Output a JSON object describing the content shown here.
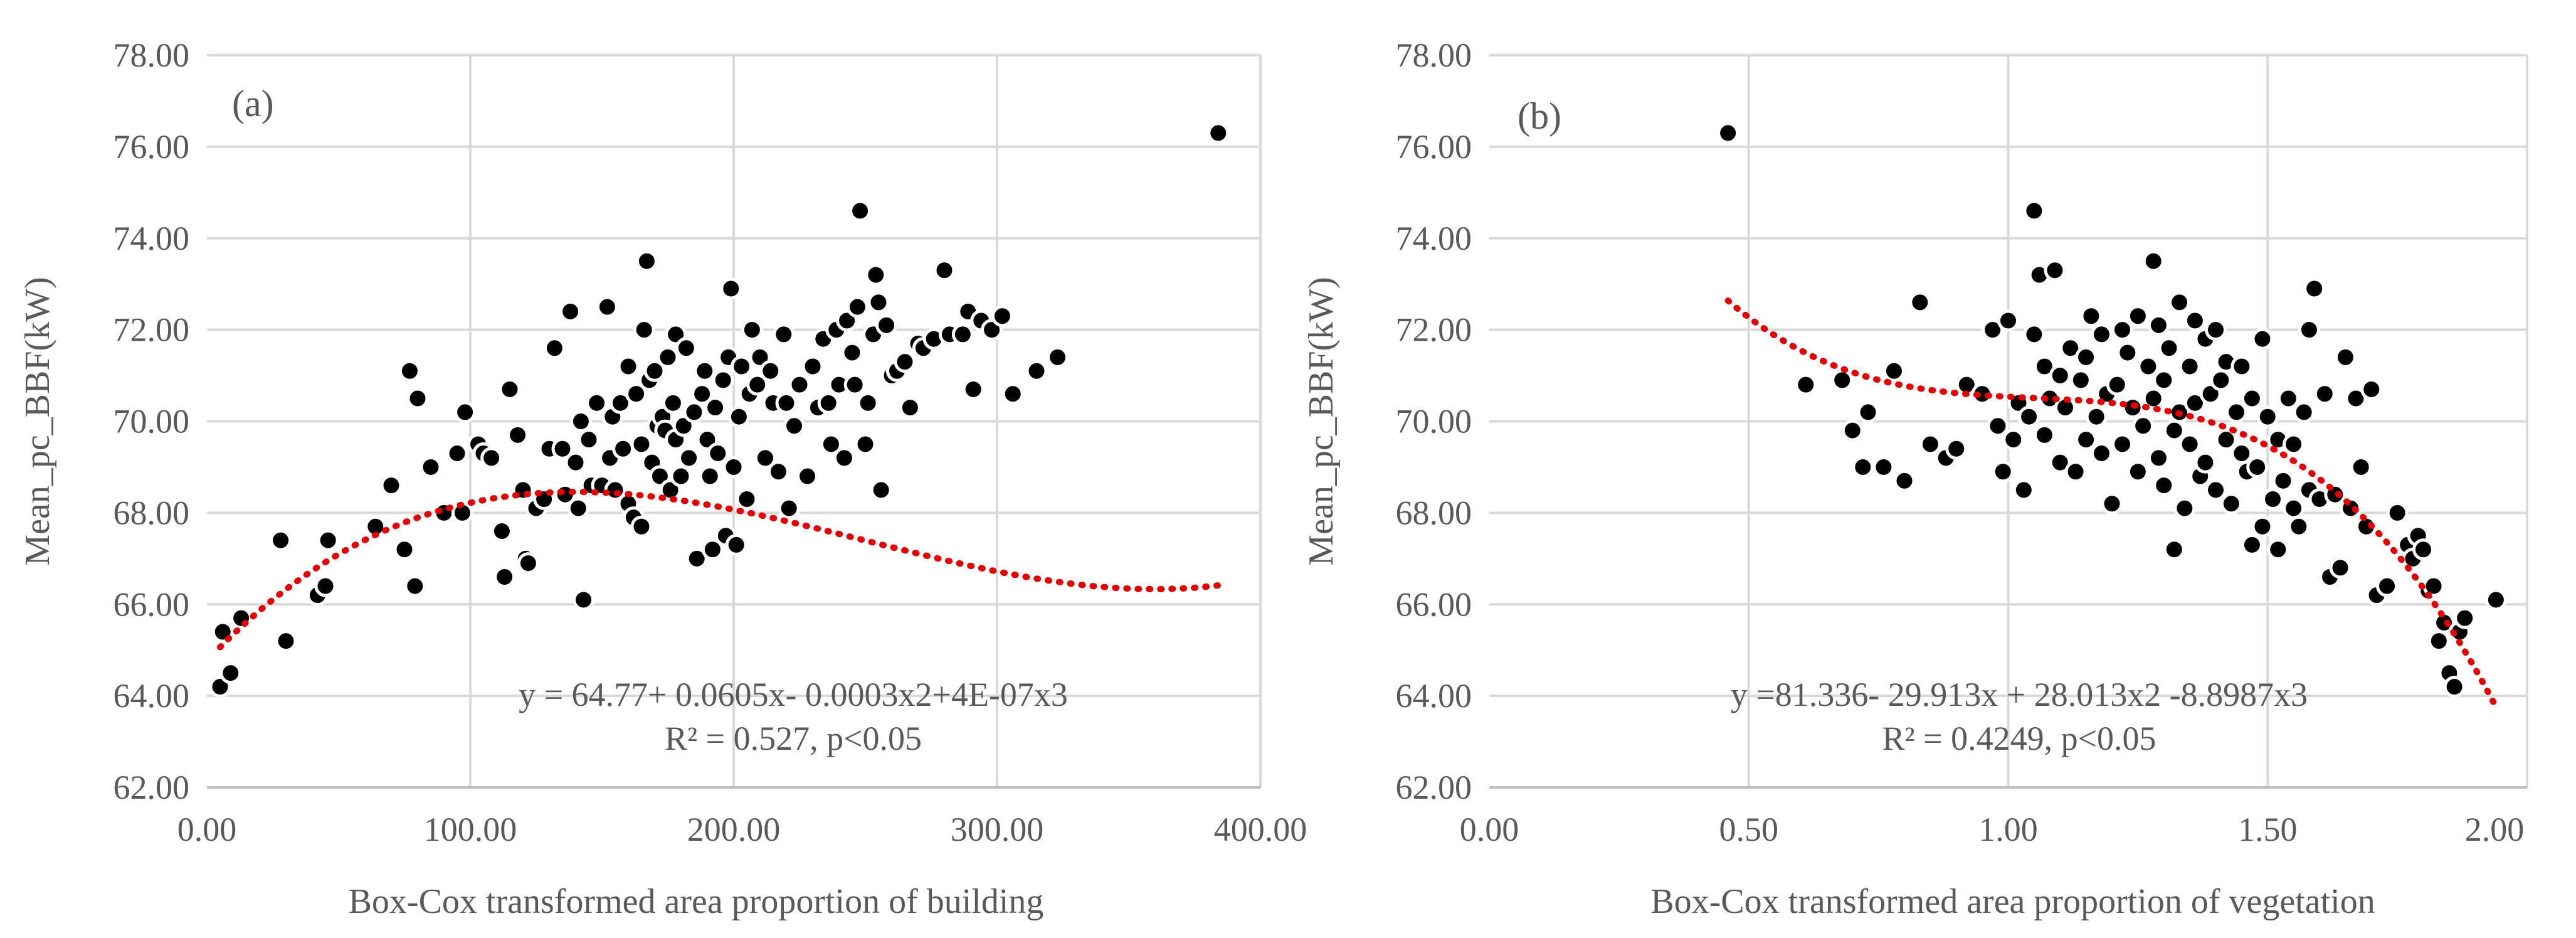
{
  "chart_data": [
    {
      "type": "scatter",
      "panel_label": "(a)",
      "xlabel": "Box-Cox transformed area proportion of building",
      "ylabel": "Mean_pc_BBF(kW)",
      "xlim": [
        0,
        400
      ],
      "ylim": [
        62,
        78
      ],
      "x_tick_values": [
        0,
        100,
        200,
        300,
        400
      ],
      "x_tick_labels": [
        "0.00",
        "100.00",
        "200.00",
        "300.00",
        "400.00"
      ],
      "y_tick_values": [
        62,
        64,
        66,
        68,
        70,
        72,
        74,
        76,
        78
      ],
      "y_tick_labels": [
        "62.00",
        "64.00",
        "66.00",
        "68.00",
        "70.00",
        "72.00",
        "74.00",
        "76.00",
        "78.00"
      ],
      "grid": true,
      "trendline": {
        "type": "polynomial-3",
        "coefficients": [
          64.77,
          0.0605,
          -0.0003,
          4e-07
        ]
      },
      "equation_text": "y = 64.77+ 0.0605x- 0.0003x2+4E-07x3",
      "r2_text": "R² = 0.527, p<0.05",
      "points": [
        [
          5,
          64.2
        ],
        [
          9,
          64.5
        ],
        [
          6,
          65.4
        ],
        [
          13,
          65.7
        ],
        [
          30,
          65.2
        ],
        [
          28,
          67.4
        ],
        [
          42,
          66.2
        ],
        [
          45,
          66.4
        ],
        [
          46,
          67.4
        ],
        [
          64,
          67.7
        ],
        [
          70,
          68.6
        ],
        [
          75,
          67.2
        ],
        [
          79,
          66.4
        ],
        [
          77,
          71.1
        ],
        [
          80,
          70.5
        ],
        [
          85,
          69.0
        ],
        [
          90,
          68.0
        ],
        [
          95,
          69.3
        ],
        [
          97,
          68.0
        ],
        [
          98,
          70.2
        ],
        [
          103,
          69.5
        ],
        [
          105,
          69.3
        ],
        [
          108,
          69.2
        ],
        [
          112,
          67.6
        ],
        [
          113,
          66.6
        ],
        [
          115,
          70.7
        ],
        [
          118,
          69.7
        ],
        [
          121,
          67.0
        ],
        [
          122,
          66.9
        ],
        [
          120,
          68.5
        ],
        [
          125,
          68.1
        ],
        [
          128,
          68.3
        ],
        [
          130,
          69.4
        ],
        [
          132,
          71.6
        ],
        [
          135,
          69.4
        ],
        [
          136,
          68.4
        ],
        [
          138,
          72.4
        ],
        [
          140,
          69.1
        ],
        [
          141,
          68.1
        ],
        [
          142,
          70.0
        ],
        [
          143,
          66.1
        ],
        [
          145,
          69.6
        ],
        [
          146,
          68.6
        ],
        [
          148,
          70.4
        ],
        [
          150,
          68.6
        ],
        [
          152,
          72.5
        ],
        [
          153,
          69.2
        ],
        [
          154,
          70.1
        ],
        [
          155,
          68.5
        ],
        [
          157,
          70.4
        ],
        [
          158,
          69.4
        ],
        [
          160,
          71.2
        ],
        [
          160,
          68.2
        ],
        [
          162,
          67.9
        ],
        [
          163,
          70.6
        ],
        [
          165,
          69.5
        ],
        [
          165,
          67.7
        ],
        [
          166,
          72.0
        ],
        [
          167,
          73.5
        ],
        [
          168,
          70.9
        ],
        [
          169,
          69.1
        ],
        [
          170,
          71.1
        ],
        [
          171,
          69.9
        ],
        [
          172,
          68.8
        ],
        [
          173,
          70.1
        ],
        [
          174,
          69.8
        ],
        [
          175,
          71.4
        ],
        [
          176,
          68.5
        ],
        [
          177,
          70.4
        ],
        [
          178,
          69.6
        ],
        [
          178,
          71.9
        ],
        [
          180,
          68.8
        ],
        [
          181,
          69.9
        ],
        [
          182,
          71.6
        ],
        [
          183,
          69.2
        ],
        [
          185,
          70.2
        ],
        [
          186,
          67.0
        ],
        [
          188,
          70.6
        ],
        [
          189,
          71.1
        ],
        [
          190,
          69.6
        ],
        [
          191,
          68.8
        ],
        [
          192,
          67.2
        ],
        [
          193,
          70.3
        ],
        [
          194,
          69.3
        ],
        [
          196,
          70.9
        ],
        [
          197,
          67.5
        ],
        [
          198,
          71.4
        ],
        [
          199,
          72.9
        ],
        [
          200,
          69.0
        ],
        [
          201,
          67.3
        ],
        [
          202,
          70.1
        ],
        [
          203,
          71.2
        ],
        [
          205,
          68.3
        ],
        [
          206,
          70.6
        ],
        [
          207,
          72.0
        ],
        [
          209,
          70.8
        ],
        [
          210,
          71.4
        ],
        [
          212,
          69.2
        ],
        [
          214,
          71.1
        ],
        [
          215,
          70.4
        ],
        [
          217,
          68.9
        ],
        [
          219,
          71.9
        ],
        [
          220,
          70.4
        ],
        [
          221,
          68.1
        ],
        [
          223,
          69.9
        ],
        [
          225,
          70.8
        ],
        [
          228,
          68.8
        ],
        [
          230,
          71.2
        ],
        [
          232,
          70.3
        ],
        [
          234,
          71.8
        ],
        [
          236,
          70.4
        ],
        [
          237,
          69.5
        ],
        [
          239,
          72.0
        ],
        [
          240,
          70.8
        ],
        [
          242,
          69.2
        ],
        [
          243,
          72.2
        ],
        [
          245,
          71.5
        ],
        [
          246,
          70.8
        ],
        [
          247,
          72.5
        ],
        [
          248,
          74.6
        ],
        [
          250,
          69.5
        ],
        [
          251,
          70.4
        ],
        [
          253,
          71.9
        ],
        [
          254,
          73.2
        ],
        [
          255,
          72.6
        ],
        [
          256,
          68.5
        ],
        [
          258,
          72.1
        ],
        [
          260,
          71.0
        ],
        [
          262,
          71.1
        ],
        [
          265,
          71.3
        ],
        [
          267,
          70.3
        ],
        [
          270,
          71.7
        ],
        [
          272,
          71.6
        ],
        [
          276,
          71.8
        ],
        [
          280,
          73.3
        ],
        [
          282,
          71.9
        ],
        [
          287,
          71.9
        ],
        [
          289,
          72.4
        ],
        [
          291,
          70.7
        ],
        [
          294,
          72.2
        ],
        [
          298,
          72.0
        ],
        [
          302,
          72.3
        ],
        [
          306,
          70.6
        ],
        [
          315,
          71.1
        ],
        [
          323,
          71.4
        ],
        [
          384,
          76.3
        ]
      ]
    },
    {
      "type": "scatter",
      "panel_label": "(b)",
      "xlabel": "Box-Cox transformed area proportion of vegetation",
      "ylabel": "Mean_pc_BBF(kW)",
      "xlim": [
        0,
        2
      ],
      "ylim": [
        62,
        78
      ],
      "x_tick_values": [
        0,
        0.5,
        1,
        1.5,
        2
      ],
      "x_tick_labels": [
        "0.00",
        "0.50",
        "1.00",
        "1.50",
        "2.00"
      ],
      "y_tick_values": [
        62,
        64,
        66,
        68,
        70,
        72,
        74,
        76,
        78
      ],
      "y_tick_labels": [
        "62.00",
        "64.00",
        "66.00",
        "68.00",
        "70.00",
        "72.00",
        "74.00",
        "76.00",
        "78.00"
      ],
      "grid": true,
      "trendline": {
        "type": "polynomial-3",
        "coefficients": [
          81.336,
          -29.913,
          28.013,
          -8.8987
        ],
        "x_range": [
          0.46,
          1.94
        ]
      },
      "equation_text": "y =81.336- 29.913x  + 28.013x2 -8.8987x3",
      "r2_text": "R² = 0.4249, p<0.05",
      "points": [
        [
          0.46,
          76.3
        ],
        [
          0.61,
          70.8
        ],
        [
          0.68,
          70.9
        ],
        [
          0.7,
          69.8
        ],
        [
          0.72,
          69.0
        ],
        [
          0.73,
          70.2
        ],
        [
          0.76,
          69.0
        ],
        [
          0.78,
          71.1
        ],
        [
          0.8,
          68.7
        ],
        [
          0.83,
          72.6
        ],
        [
          0.85,
          69.5
        ],
        [
          0.88,
          69.2
        ],
        [
          0.9,
          69.4
        ],
        [
          0.92,
          70.8
        ],
        [
          0.95,
          70.6
        ],
        [
          0.97,
          72.0
        ],
        [
          0.98,
          69.9
        ],
        [
          0.99,
          68.9
        ],
        [
          1.0,
          72.2
        ],
        [
          1.01,
          69.6
        ],
        [
          1.02,
          70.4
        ],
        [
          1.03,
          68.5
        ],
        [
          1.04,
          70.1
        ],
        [
          1.05,
          74.6
        ],
        [
          1.05,
          71.9
        ],
        [
          1.06,
          73.2
        ],
        [
          1.07,
          69.7
        ],
        [
          1.07,
          71.2
        ],
        [
          1.08,
          70.5
        ],
        [
          1.09,
          73.3
        ],
        [
          1.1,
          69.1
        ],
        [
          1.1,
          71.0
        ],
        [
          1.11,
          70.3
        ],
        [
          1.12,
          71.6
        ],
        [
          1.13,
          68.9
        ],
        [
          1.14,
          70.9
        ],
        [
          1.15,
          69.6
        ],
        [
          1.15,
          71.4
        ],
        [
          1.16,
          72.3
        ],
        [
          1.17,
          70.1
        ],
        [
          1.18,
          69.3
        ],
        [
          1.18,
          71.9
        ],
        [
          1.19,
          70.6
        ],
        [
          1.2,
          68.2
        ],
        [
          1.21,
          70.8
        ],
        [
          1.22,
          72.0
        ],
        [
          1.22,
          69.5
        ],
        [
          1.23,
          71.5
        ],
        [
          1.24,
          70.3
        ],
        [
          1.25,
          68.9
        ],
        [
          1.25,
          72.3
        ],
        [
          1.26,
          69.9
        ],
        [
          1.27,
          71.2
        ],
        [
          1.28,
          73.5
        ],
        [
          1.28,
          70.5
        ],
        [
          1.29,
          69.2
        ],
        [
          1.29,
          72.1
        ],
        [
          1.3,
          68.6
        ],
        [
          1.3,
          70.9
        ],
        [
          1.31,
          71.6
        ],
        [
          1.32,
          69.8
        ],
        [
          1.32,
          67.2
        ],
        [
          1.33,
          72.6
        ],
        [
          1.33,
          70.2
        ],
        [
          1.34,
          68.1
        ],
        [
          1.35,
          71.2
        ],
        [
          1.35,
          69.5
        ],
        [
          1.36,
          72.2
        ],
        [
          1.36,
          70.4
        ],
        [
          1.37,
          68.8
        ],
        [
          1.38,
          71.8
        ],
        [
          1.38,
          69.1
        ],
        [
          1.39,
          70.6
        ],
        [
          1.4,
          72.0
        ],
        [
          1.4,
          68.5
        ],
        [
          1.41,
          70.9
        ],
        [
          1.42,
          69.6
        ],
        [
          1.42,
          71.3
        ],
        [
          1.43,
          68.2
        ],
        [
          1.44,
          70.2
        ],
        [
          1.45,
          69.3
        ],
        [
          1.45,
          71.2
        ],
        [
          1.46,
          68.9
        ],
        [
          1.47,
          67.3
        ],
        [
          1.47,
          70.5
        ],
        [
          1.48,
          69.0
        ],
        [
          1.49,
          71.8
        ],
        [
          1.49,
          67.7
        ],
        [
          1.5,
          70.1
        ],
        [
          1.51,
          68.3
        ],
        [
          1.52,
          69.6
        ],
        [
          1.52,
          67.2
        ],
        [
          1.53,
          68.7
        ],
        [
          1.54,
          70.5
        ],
        [
          1.55,
          68.1
        ],
        [
          1.55,
          69.5
        ],
        [
          1.56,
          67.7
        ],
        [
          1.57,
          70.2
        ],
        [
          1.58,
          72.0
        ],
        [
          1.58,
          68.5
        ],
        [
          1.59,
          72.9
        ],
        [
          1.6,
          68.3
        ],
        [
          1.61,
          70.6
        ],
        [
          1.62,
          66.6
        ],
        [
          1.63,
          68.4
        ],
        [
          1.64,
          66.8
        ],
        [
          1.65,
          71.4
        ],
        [
          1.66,
          68.1
        ],
        [
          1.67,
          70.5
        ],
        [
          1.68,
          69.0
        ],
        [
          1.69,
          67.7
        ],
        [
          1.7,
          70.7
        ],
        [
          1.71,
          66.2
        ],
        [
          1.73,
          66.4
        ],
        [
          1.75,
          68.0
        ],
        [
          1.77,
          67.3
        ],
        [
          1.78,
          67.0
        ],
        [
          1.79,
          67.5
        ],
        [
          1.8,
          67.2
        ],
        [
          1.81,
          66.3
        ],
        [
          1.82,
          66.4
        ],
        [
          1.83,
          65.2
        ],
        [
          1.84,
          65.6
        ],
        [
          1.85,
          64.5
        ],
        [
          1.86,
          64.2
        ],
        [
          1.87,
          65.4
        ],
        [
          1.88,
          65.7
        ],
        [
          1.94,
          66.1
        ]
      ]
    }
  ]
}
